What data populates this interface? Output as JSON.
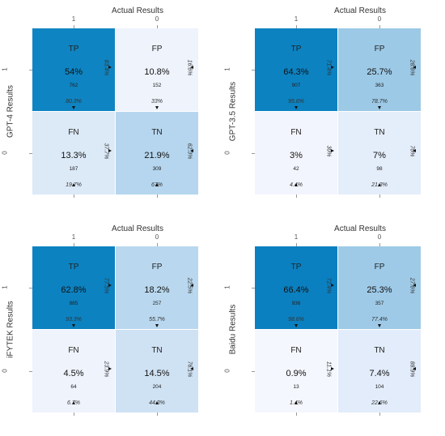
{
  "chart_data": [
    {
      "type": "heatmap",
      "xlabel": "Actual Results",
      "ylabel": "GPT-4 Results",
      "x_ticks": [
        "1",
        "0"
      ],
      "y_ticks": [
        "1",
        "0"
      ],
      "cells": [
        {
          "label": "TP",
          "percent": "54%",
          "count": "762",
          "row_pct": "83.4%",
          "col_pct": "80.3%",
          "color": "#0f84c2"
        },
        {
          "label": "FP",
          "percent": "10.8%",
          "count": "152",
          "row_pct": "16.6%",
          "col_pct": "33%",
          "color": "#eef3fc"
        },
        {
          "label": "FN",
          "percent": "13.3%",
          "count": "187",
          "row_pct": "37.7%",
          "col_pct": "19.7%",
          "color": "#dce9f7"
        },
        {
          "label": "TN",
          "percent": "21.9%",
          "count": "309",
          "row_pct": "62.3%",
          "col_pct": "67%",
          "color": "#b5d6ee"
        }
      ]
    },
    {
      "type": "heatmap",
      "xlabel": "Actual Results",
      "ylabel": "GPT-3.5 Results",
      "x_ticks": [
        "1",
        "0"
      ],
      "y_ticks": [
        "1",
        "0"
      ],
      "cells": [
        {
          "label": "TP",
          "percent": "64.3%",
          "count": "907",
          "row_pct": "71.4%",
          "col_pct": "95.6%",
          "color": "#0c82c1"
        },
        {
          "label": "FP",
          "percent": "25.7%",
          "count": "363",
          "row_pct": "28.6%",
          "col_pct": "78.7%",
          "color": "#9cc9e6"
        },
        {
          "label": "FN",
          "percent": "3%",
          "count": "42",
          "row_pct": "30%",
          "col_pct": "4.4%",
          "color": "#f2f5fd"
        },
        {
          "label": "TN",
          "percent": "7%",
          "count": "98",
          "row_pct": "70%",
          "col_pct": "21.3%",
          "color": "#e4edfa"
        }
      ]
    },
    {
      "type": "heatmap",
      "xlabel": "Actual Results",
      "ylabel": "iFYTEK Results",
      "x_ticks": [
        "1",
        "0"
      ],
      "y_ticks": [
        "1",
        "0"
      ],
      "cells": [
        {
          "label": "TP",
          "percent": "62.8%",
          "count": "885",
          "row_pct": "77.5%",
          "col_pct": "93.3%",
          "color": "#0c82c1"
        },
        {
          "label": "FP",
          "percent": "18.2%",
          "count": "257",
          "row_pct": "22.5%",
          "col_pct": "55.7%",
          "color": "#b9d8ef"
        },
        {
          "label": "FN",
          "percent": "4.5%",
          "count": "64",
          "row_pct": "23.9%",
          "col_pct": "6.7%",
          "color": "#eef3fc"
        },
        {
          "label": "TN",
          "percent": "14.5%",
          "count": "204",
          "row_pct": "76.1%",
          "col_pct": "44.3%",
          "color": "#cfe2f4"
        }
      ]
    },
    {
      "type": "heatmap",
      "xlabel": "Actual Results",
      "ylabel": "Baidu Results",
      "x_ticks": [
        "1",
        "0"
      ],
      "y_ticks": [
        "1",
        "0"
      ],
      "cells": [
        {
          "label": "TP",
          "percent": "66.4%",
          "count": "936",
          "row_pct": "72.4%",
          "col_pct": "98.6%",
          "color": "#0b80c0"
        },
        {
          "label": "FP",
          "percent": "25.3%",
          "count": "357",
          "row_pct": "27.6%",
          "col_pct": "77.4%",
          "color": "#9ecae7"
        },
        {
          "label": "FN",
          "percent": "0.9%",
          "count": "13",
          "row_pct": "11.1%",
          "col_pct": "1.4%",
          "color": "#f4f7fd"
        },
        {
          "label": "TN",
          "percent": "7.4%",
          "count": "104",
          "row_pct": "88.9%",
          "col_pct": "22.6%",
          "color": "#e2ecfa"
        }
      ]
    }
  ]
}
